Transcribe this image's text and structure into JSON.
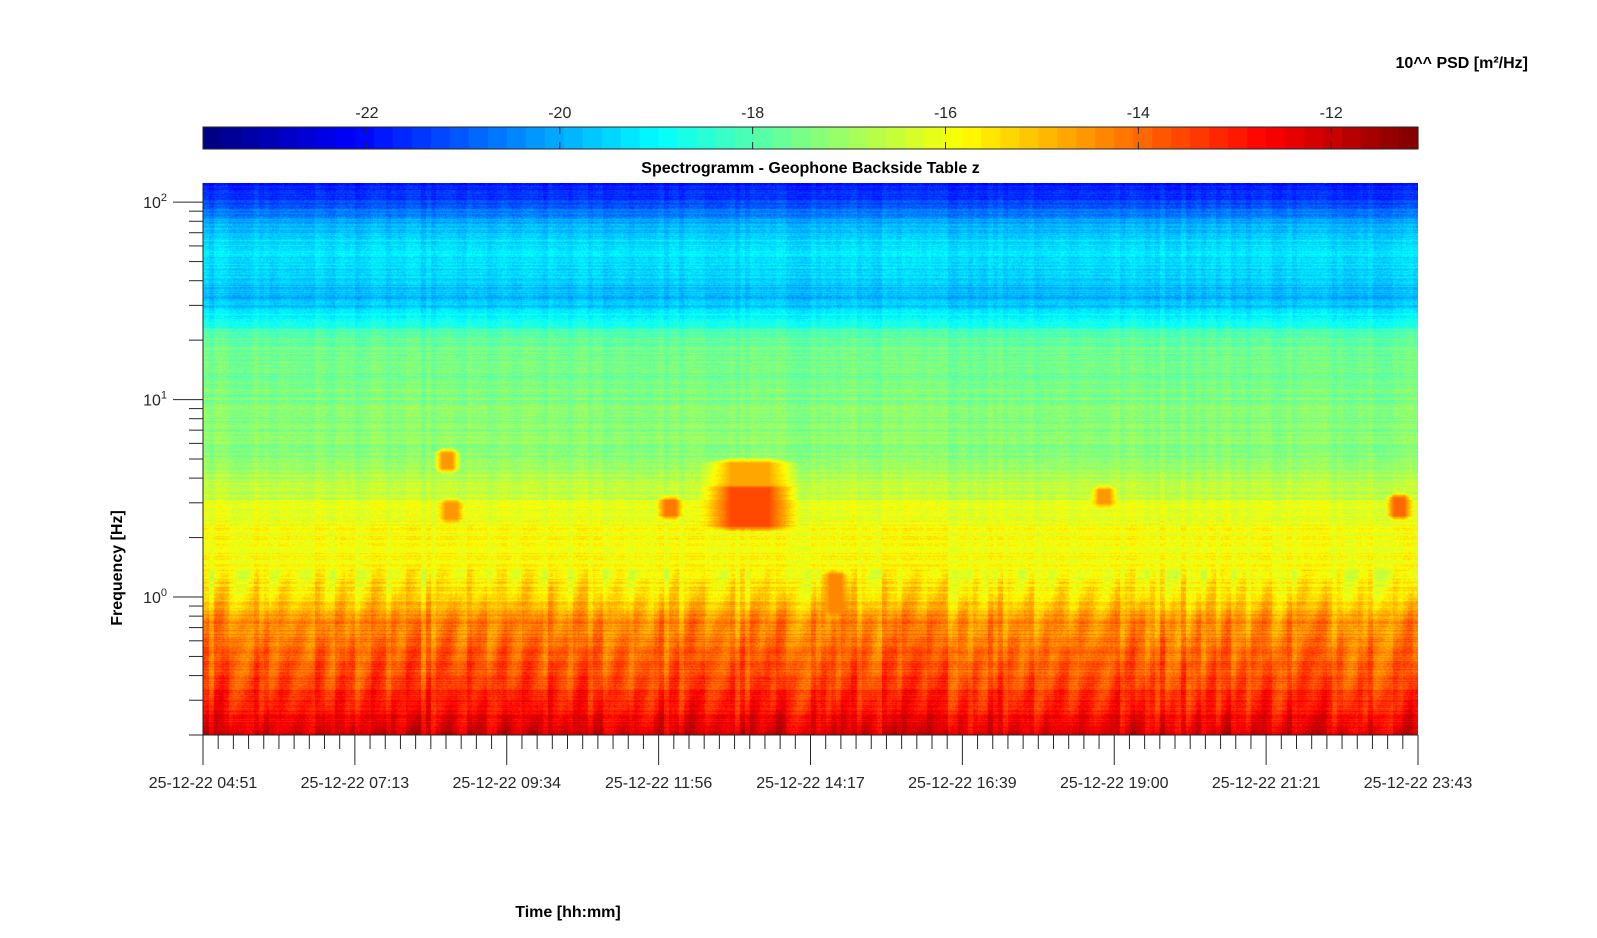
{
  "chart_data": {
    "type": "heatmap",
    "title": "Spectrogramm - Geophone Backside Table z",
    "xlabel": "Time [hh:mm]",
    "ylabel": "Frequency [Hz]",
    "y_scale": "log",
    "ylim": [
      0.2,
      125
    ],
    "y_major_ticks": [
      1,
      10,
      100
    ],
    "y_tick_labels": [
      {
        "base": "10",
        "exp": "0"
      },
      {
        "base": "10",
        "exp": "1"
      },
      {
        "base": "10",
        "exp": "2"
      }
    ],
    "x_tick_labels": [
      "25-12-22 04:51",
      "25-12-22 07:13",
      "25-12-22 09:34",
      "25-12-22 11:56",
      "25-12-22 14:17",
      "25-12-22 16:39",
      "25-12-22 19:00",
      "25-12-22 21:21",
      "25-12-22 23:43"
    ],
    "colorbar": {
      "label": "10^^ PSD [m²/Hz]",
      "orientation": "horizontal",
      "placement": "top",
      "colormap": "jet",
      "range": [
        -23.7,
        -11.1
      ],
      "ticks": [
        -22,
        -20,
        -18,
        -16,
        -14,
        -12
      ],
      "tick_labels": [
        "-22",
        "-20",
        "-18",
        "-16",
        "-14",
        "-12"
      ]
    },
    "background_psd_profile": [
      {
        "freq_hz": 125,
        "log10_psd": -22.0
      },
      {
        "freq_hz": 100,
        "log10_psd": -21.3
      },
      {
        "freq_hz": 80,
        "log10_psd": -20.1
      },
      {
        "freq_hz": 60,
        "log10_psd": -19.2
      },
      {
        "freq_hz": 45,
        "log10_psd": -19.5
      },
      {
        "freq_hz": 32,
        "log10_psd": -19.9
      },
      {
        "freq_hz": 24,
        "log10_psd": -18.6
      },
      {
        "freq_hz": 20,
        "log10_psd": -17.6
      },
      {
        "freq_hz": 12,
        "log10_psd": -17.5
      },
      {
        "freq_hz": 7,
        "log10_psd": -17.3
      },
      {
        "freq_hz": 5,
        "log10_psd": -17.2
      },
      {
        "freq_hz": 3,
        "log10_psd": -16.3
      },
      {
        "freq_hz": 2,
        "log10_psd": -15.8
      },
      {
        "freq_hz": 1.3,
        "log10_psd": -15.8
      },
      {
        "freq_hz": 1.0,
        "log10_psd": -15.4
      },
      {
        "freq_hz": 0.75,
        "log10_psd": -14.4
      },
      {
        "freq_hz": 0.5,
        "log10_psd": -13.9
      },
      {
        "freq_hz": 0.3,
        "log10_psd": -13.1
      },
      {
        "freq_hz": 0.2,
        "log10_psd": -12.2
      }
    ],
    "events": [
      {
        "time": "25-12-22 13:20",
        "freq_range_hz": [
          2.3,
          3.6
        ],
        "log10_psd": -13.6
      },
      {
        "time": "25-12-22 13:20",
        "freq_range_hz": [
          3.6,
          4.8
        ],
        "log10_psd": -14.8
      },
      {
        "time": "25-12-22 12:06",
        "freq_range_hz": [
          2.6,
          3.1
        ],
        "log10_psd": -14.2
      },
      {
        "time": "25-12-22 08:38",
        "freq_range_hz": [
          4.5,
          5.4
        ],
        "log10_psd": -14.6
      },
      {
        "time": "25-12-22 08:42",
        "freq_range_hz": [
          2.5,
          3.0
        ],
        "log10_psd": -14.5
      },
      {
        "time": "25-12-22 18:50",
        "freq_range_hz": [
          3.0,
          3.5
        ],
        "log10_psd": -14.6
      },
      {
        "time": "25-12-22 23:25",
        "freq_range_hz": [
          2.6,
          3.2
        ],
        "log10_psd": -14.0
      },
      {
        "time": "25-12-22 14:40",
        "freq_range_hz": [
          0.85,
          1.3
        ],
        "log10_psd": -14.3
      }
    ]
  }
}
